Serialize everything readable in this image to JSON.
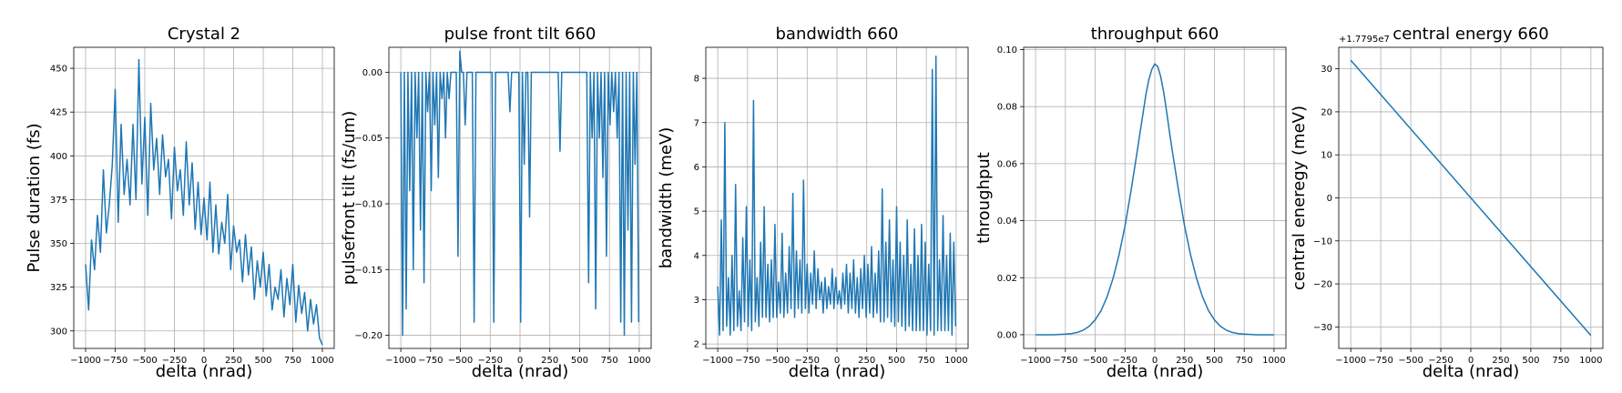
{
  "figure": {
    "series_color": "#1f77b4",
    "grid_color": "#b0b0b0"
  },
  "chart_data": [
    {
      "type": "line",
      "title": "Crystal 2",
      "xlabel": "delta (nrad)",
      "ylabel": "Pulse duration (fs)",
      "xlim": [
        -1100,
        1100
      ],
      "ylim": [
        290,
        462
      ],
      "xticks": [
        -1000,
        -750,
        -500,
        -250,
        0,
        250,
        500,
        750,
        1000
      ],
      "xtick_labels": [
        "−1000",
        "−750",
        "−500",
        "−250",
        "0",
        "250",
        "500",
        "750",
        "1000"
      ],
      "yticks": [
        300,
        325,
        350,
        375,
        400,
        425,
        450
      ],
      "ytick_labels": [
        "300",
        "325",
        "350",
        "375",
        "400",
        "425",
        "450"
      ],
      "grid": true,
      "legend": "none",
      "series": [
        {
          "x": [
            -1000,
            -975,
            -950,
            -925,
            -900,
            -875,
            -850,
            -825,
            -800,
            -775,
            -750,
            -725,
            -700,
            -675,
            -650,
            -625,
            -600,
            -575,
            -550,
            -525,
            -500,
            -475,
            -450,
            -425,
            -400,
            -375,
            -350,
            -325,
            -300,
            -275,
            -250,
            -225,
            -200,
            -175,
            -150,
            -125,
            -100,
            -75,
            -50,
            -25,
            0,
            25,
            50,
            75,
            100,
            125,
            150,
            175,
            200,
            225,
            250,
            275,
            300,
            325,
            350,
            375,
            400,
            425,
            450,
            475,
            500,
            525,
            550,
            575,
            600,
            625,
            650,
            675,
            700,
            725,
            750,
            775,
            800,
            825,
            850,
            875,
            900,
            925,
            950,
            975,
            1000
          ],
          "y": [
            338,
            312,
            352,
            335,
            366,
            345,
            392,
            356,
            372,
            395,
            438,
            362,
            418,
            378,
            398,
            372,
            418,
            375,
            455,
            384,
            422,
            366,
            430,
            392,
            410,
            378,
            412,
            388,
            398,
            364,
            405,
            380,
            392,
            366,
            408,
            372,
            396,
            358,
            385,
            355,
            376,
            352,
            385,
            345,
            372,
            344,
            362,
            350,
            378,
            335,
            360,
            345,
            352,
            328,
            355,
            332,
            348,
            318,
            340,
            325,
            345,
            320,
            338,
            312,
            325,
            318,
            335,
            308,
            330,
            315,
            338,
            305,
            326,
            310,
            322,
            300,
            318,
            304,
            315,
            296,
            292
          ]
        }
      ]
    },
    {
      "type": "line",
      "title": "pulse front tilt 660",
      "xlabel": "delta (nrad)",
      "ylabel": "pulsefront tilt (fs/um)",
      "xlim": [
        -1100,
        1100
      ],
      "ylim": [
        -0.21,
        0.019
      ],
      "xticks": [
        -1000,
        -750,
        -500,
        -250,
        0,
        250,
        500,
        750,
        1000
      ],
      "xtick_labels": [
        "−1000",
        "−750",
        "−500",
        "−250",
        "0",
        "250",
        "500",
        "750",
        "1000"
      ],
      "yticks": [
        -0.2,
        -0.15,
        -0.1,
        -0.05,
        0.0
      ],
      "ytick_labels": [
        "−0.20",
        "−0.15",
        "−0.10",
        "−0.05",
        "0.00"
      ],
      "grid": true,
      "legend": "none",
      "series": [
        {
          "x": [
            -1000,
            -985,
            -970,
            -955,
            -940,
            -925,
            -910,
            -895,
            -880,
            -865,
            -850,
            -835,
            -820,
            -805,
            -790,
            -775,
            -760,
            -745,
            -730,
            -715,
            -700,
            -685,
            -670,
            -655,
            -640,
            -625,
            -610,
            -595,
            -580,
            -565,
            -550,
            -535,
            -520,
            -505,
            -490,
            -475,
            -460,
            -445,
            -430,
            -415,
            -400,
            -385,
            -370,
            -355,
            -340,
            -325,
            -310,
            -295,
            -280,
            -265,
            -250,
            -235,
            -220,
            -205,
            -190,
            -175,
            -160,
            -145,
            -130,
            -115,
            -100,
            -85,
            -70,
            -55,
            -40,
            -25,
            -10,
            5,
            20,
            35,
            50,
            65,
            80,
            95,
            110,
            125,
            140,
            155,
            170,
            185,
            200,
            215,
            230,
            245,
            260,
            275,
            290,
            305,
            320,
            335,
            350,
            365,
            380,
            395,
            410,
            425,
            440,
            455,
            470,
            485,
            500,
            515,
            530,
            545,
            560,
            575,
            590,
            605,
            620,
            635,
            650,
            665,
            680,
            695,
            710,
            725,
            740,
            755,
            770,
            785,
            800,
            815,
            830,
            845,
            860,
            875,
            890,
            905,
            920,
            935,
            950,
            965,
            980,
            995
          ],
          "y": [
            0,
            -0.2,
            0,
            -0.18,
            0,
            -0.09,
            0,
            -0.15,
            0,
            -0.05,
            0,
            -0.12,
            0,
            -0.16,
            0,
            -0.03,
            0,
            -0.09,
            0,
            -0.04,
            0,
            -0.08,
            0,
            -0.02,
            0,
            -0.05,
            0,
            -0.02,
            0,
            0,
            0,
            0,
            -0.14,
            0.016,
            0,
            0,
            -0.04,
            0,
            0,
            0,
            0,
            -0.19,
            0,
            0,
            0,
            0,
            0,
            0,
            0,
            0,
            0,
            0,
            -0.19,
            0,
            0,
            0,
            0,
            0,
            0,
            0,
            0,
            -0.03,
            0,
            0,
            0,
            0,
            0,
            -0.19,
            0,
            -0.07,
            0,
            0,
            -0.11,
            0,
            0,
            0,
            0,
            0,
            0,
            0,
            0,
            0,
            0,
            0,
            0,
            0,
            0,
            0,
            0,
            -0.06,
            0,
            0,
            0,
            0,
            0,
            0,
            0,
            0,
            0,
            0,
            0,
            0,
            0,
            0,
            0,
            -0.16,
            0,
            -0.05,
            0,
            -0.18,
            0,
            -0.05,
            0,
            -0.08,
            0,
            -0.14,
            0,
            -0.04,
            0,
            -0.03,
            0,
            -0.05,
            0,
            -0.19,
            0,
            -0.2,
            0,
            -0.12,
            0,
            -0.19,
            0,
            -0.07,
            0,
            -0.19
          ]
        }
      ]
    },
    {
      "type": "line",
      "title": "bandwidth 660",
      "xlabel": "delta (nrad)",
      "ylabel": "bandwidth (meV)",
      "xlim": [
        -1100,
        1100
      ],
      "ylim": [
        1.9,
        8.7
      ],
      "xticks": [
        -1000,
        -750,
        -500,
        -250,
        0,
        250,
        500,
        750,
        1000
      ],
      "xtick_labels": [
        "−1000",
        "−750",
        "−500",
        "−250",
        "0",
        "250",
        "500",
        "750",
        "1000"
      ],
      "yticks": [
        2,
        3,
        4,
        5,
        6,
        7,
        8
      ],
      "ytick_labels": [
        "2",
        "3",
        "4",
        "5",
        "6",
        "7",
        "8"
      ],
      "grid": true,
      "legend": "none",
      "series": [
        {
          "x": [
            -1000,
            -985,
            -970,
            -955,
            -940,
            -925,
            -910,
            -895,
            -880,
            -865,
            -850,
            -835,
            -820,
            -805,
            -790,
            -775,
            -760,
            -745,
            -730,
            -715,
            -700,
            -685,
            -670,
            -655,
            -640,
            -625,
            -610,
            -595,
            -580,
            -565,
            -550,
            -535,
            -520,
            -505,
            -490,
            -475,
            -460,
            -445,
            -430,
            -415,
            -400,
            -385,
            -370,
            -355,
            -340,
            -325,
            -310,
            -295,
            -280,
            -265,
            -250,
            -235,
            -220,
            -205,
            -190,
            -175,
            -160,
            -145,
            -130,
            -115,
            -100,
            -85,
            -70,
            -55,
            -40,
            -25,
            -10,
            5,
            20,
            35,
            50,
            65,
            80,
            95,
            110,
            125,
            140,
            155,
            170,
            185,
            200,
            215,
            230,
            245,
            260,
            275,
            290,
            305,
            320,
            335,
            350,
            365,
            380,
            395,
            410,
            425,
            440,
            455,
            470,
            485,
            500,
            515,
            530,
            545,
            560,
            575,
            590,
            605,
            620,
            635,
            650,
            665,
            680,
            695,
            710,
            725,
            740,
            755,
            770,
            785,
            800,
            815,
            830,
            845,
            860,
            875,
            890,
            905,
            920,
            935,
            950,
            965,
            980,
            995
          ],
          "y": [
            3.3,
            2.2,
            4.8,
            2.3,
            7.0,
            2.4,
            3.5,
            2.2,
            4.0,
            2.3,
            5.6,
            2.4,
            3.2,
            2.3,
            4.4,
            2.5,
            5.1,
            2.4,
            3.9,
            2.3,
            7.5,
            2.5,
            3.5,
            2.4,
            4.3,
            2.6,
            5.1,
            2.6,
            3.8,
            2.5,
            3.9,
            2.6,
            4.7,
            2.6,
            3.4,
            2.7,
            4.5,
            2.6,
            3.6,
            2.7,
            4.2,
            2.8,
            5.4,
            2.6,
            4.1,
            2.8,
            3.9,
            2.7,
            5.7,
            2.8,
            3.8,
            2.7,
            3.6,
            2.9,
            4.1,
            2.8,
            3.7,
            3.0,
            3.4,
            2.7,
            3.5,
            2.8,
            3.3,
            2.9,
            3.7,
            2.8,
            3.5,
            2.9,
            3.2,
            2.8,
            3.6,
            2.9,
            3.8,
            2.7,
            3.6,
            2.8,
            3.9,
            2.7,
            3.5,
            2.6,
            3.7,
            2.8,
            4.0,
            2.6,
            3.8,
            2.7,
            4.2,
            2.6,
            3.6,
            2.7,
            4.1,
            2.5,
            5.5,
            2.5,
            4.3,
            2.6,
            4.8,
            2.5,
            3.9,
            2.4,
            5.1,
            2.5,
            4.3,
            2.4,
            4.0,
            2.3,
            4.8,
            2.4,
            3.8,
            2.3,
            4.6,
            2.3,
            4.0,
            2.3,
            4.7,
            2.3,
            4.3,
            2.2,
            3.8,
            2.3,
            8.2,
            2.2,
            8.5,
            2.3,
            3.9,
            2.3,
            4.9,
            2.3,
            4.0,
            2.3,
            4.5,
            2.2,
            4.3,
            2.4
          ]
        }
      ]
    },
    {
      "type": "line",
      "title": "throughput 660",
      "xlabel": "delta (nrad)",
      "ylabel": "throughput",
      "xlim": [
        -1100,
        1100
      ],
      "ylim": [
        -0.0048,
        0.1008
      ],
      "xticks": [
        -1000,
        -750,
        -500,
        -250,
        0,
        250,
        500,
        750,
        1000
      ],
      "xtick_labels": [
        "−1000",
        "−750",
        "−500",
        "−250",
        "0",
        "250",
        "500",
        "750",
        "1000"
      ],
      "yticks": [
        0.0,
        0.02,
        0.04,
        0.06,
        0.08,
        0.1
      ],
      "ytick_labels": [
        "0.00",
        "0.02",
        "0.04",
        "0.06",
        "0.08",
        "0.10"
      ],
      "grid": true,
      "legend": "none",
      "series": [
        {
          "x": [
            -1000,
            -950,
            -900,
            -850,
            -800,
            -750,
            -700,
            -650,
            -600,
            -550,
            -500,
            -450,
            -400,
            -350,
            -300,
            -250,
            -200,
            -150,
            -125,
            -100,
            -75,
            -50,
            -25,
            0,
            25,
            50,
            75,
            100,
            125,
            150,
            200,
            250,
            300,
            350,
            400,
            450,
            500,
            550,
            600,
            650,
            700,
            750,
            800,
            850,
            900,
            950,
            1000
          ],
          "y": [
            0.0,
            0.0,
            0.0,
            0.0,
            0.0001,
            0.0002,
            0.0004,
            0.0008,
            0.0016,
            0.003,
            0.0052,
            0.0085,
            0.0133,
            0.0198,
            0.028,
            0.0381,
            0.0503,
            0.0637,
            0.0705,
            0.0773,
            0.0842,
            0.0895,
            0.093,
            0.095,
            0.094,
            0.0905,
            0.085,
            0.078,
            0.0705,
            0.0637,
            0.0503,
            0.0381,
            0.028,
            0.0198,
            0.0133,
            0.0085,
            0.0052,
            0.003,
            0.0016,
            0.0008,
            0.0004,
            0.0002,
            0.0001,
            0.0,
            0.0,
            0.0,
            0.0
          ]
        }
      ]
    },
    {
      "type": "line",
      "title": "central energy 660",
      "xlabel": "delta (nrad)",
      "ylabel": "central eneregy (meV)",
      "axis_offset_label": "+1.7795e7",
      "xlim": [
        -1100,
        1100
      ],
      "ylim": [
        -35,
        35
      ],
      "xticks": [
        -1000,
        -750,
        -500,
        -250,
        0,
        250,
        500,
        750,
        1000
      ],
      "xtick_labels": [
        "−1000",
        "−750",
        "−500",
        "−250",
        "0",
        "250",
        "500",
        "750",
        "1000"
      ],
      "yticks": [
        -30,
        -20,
        -10,
        0,
        10,
        20,
        30
      ],
      "ytick_labels": [
        "−30",
        "−20",
        "−10",
        "0",
        "10",
        "20",
        "30"
      ],
      "grid": true,
      "legend": "none",
      "series": [
        {
          "x": [
            -1000,
            1000
          ],
          "y": [
            32,
            -32
          ]
        }
      ]
    }
  ]
}
